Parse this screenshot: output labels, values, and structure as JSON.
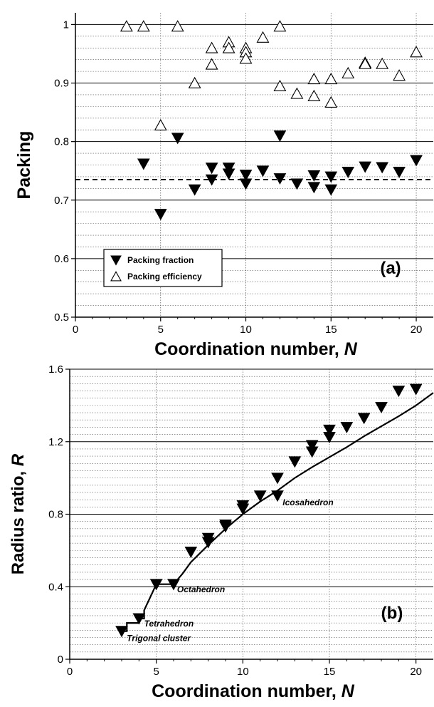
{
  "chart_data": [
    {
      "type": "scatter",
      "panel_label": "(a)",
      "xlabel": "Coordination number, ",
      "xlabel_var": "N",
      "ylabel": "Packing",
      "xlim": [
        0,
        21
      ],
      "ylim": [
        0.5,
        1.02
      ],
      "x_ticks": [
        0,
        5,
        10,
        15,
        20
      ],
      "y_ticks": [
        0.5,
        0.6,
        0.7,
        0.8,
        0.9,
        1
      ],
      "y_tick_labels": [
        "0.5",
        "0.6",
        "0.7",
        "0.8",
        "0.9",
        "1"
      ],
      "grid": true,
      "reference_line": {
        "y": 0.735,
        "style": "dashed"
      },
      "legend_position": "bottom-left",
      "series": [
        {
          "name": "Packing fraction",
          "marker": "filled-down-triangle",
          "x": [
            4,
            5,
            6,
            7,
            8,
            8,
            9,
            9,
            10,
            10,
            11,
            12,
            12,
            13,
            14,
            14,
            15,
            15,
            16,
            17,
            18,
            19,
            20
          ],
          "y": [
            0.762,
            0.676,
            0.806,
            0.718,
            0.755,
            0.735,
            0.755,
            0.745,
            0.743,
            0.728,
            0.75,
            0.81,
            0.737,
            0.728,
            0.742,
            0.722,
            0.74,
            0.718,
            0.748,
            0.757,
            0.756,
            0.748,
            0.768
          ]
        },
        {
          "name": "Packing efficiency",
          "marker": "hollow-up-triangle",
          "x": [
            3,
            4,
            5,
            6,
            7,
            8,
            8,
            9,
            9,
            10,
            10,
            10,
            11,
            12,
            12,
            13,
            14,
            14,
            15,
            15,
            16,
            17,
            17,
            18,
            19,
            20
          ],
          "y": [
            0.997,
            0.997,
            0.828,
            0.997,
            0.9,
            0.96,
            0.932,
            0.97,
            0.96,
            0.96,
            0.953,
            0.942,
            0.978,
            0.997,
            0.895,
            0.882,
            0.907,
            0.878,
            0.907,
            0.867,
            0.917,
            0.935,
            0.933,
            0.933,
            0.913,
            0.953
          ]
        }
      ]
    },
    {
      "type": "scatter",
      "panel_label": "(b)",
      "xlabel": "Coordination number, ",
      "xlabel_var": "N",
      "ylabel": "Radius ratio, ",
      "ylabel_var": "R",
      "xlim": [
        0,
        21
      ],
      "ylim": [
        0,
        1.6
      ],
      "x_ticks": [
        0,
        5,
        10,
        15,
        20
      ],
      "y_ticks": [
        0,
        0.4,
        0.8,
        1.2,
        1.6
      ],
      "y_tick_labels": [
        "0",
        "0.4",
        "0.8",
        "1.2",
        "1.6"
      ],
      "grid": true,
      "series": [
        {
          "marker": "filled-down-triangle",
          "x": [
            3,
            4,
            5,
            6,
            7,
            8,
            8,
            9,
            9,
            10,
            10,
            11,
            12,
            12,
            13,
            14,
            14,
            15,
            15,
            16,
            17,
            18,
            19,
            20
          ],
          "y": [
            0.155,
            0.225,
            0.414,
            0.414,
            0.592,
            0.645,
            0.668,
            0.732,
            0.742,
            0.83,
            0.848,
            0.902,
            0.902,
            1.0,
            1.09,
            1.145,
            1.18,
            1.225,
            1.265,
            1.28,
            1.33,
            1.39,
            1.48,
            1.49
          ]
        }
      ],
      "curve": {
        "x": [
          3,
          3.3,
          3.3,
          4,
          4,
          4.3,
          4.3,
          5,
          5.3,
          5.3,
          6,
          6.5,
          7,
          8,
          9,
          10,
          11,
          12,
          13,
          14,
          15,
          16,
          17,
          18,
          19,
          20,
          21
        ],
        "y": [
          0.155,
          0.155,
          0.2,
          0.2,
          0.225,
          0.225,
          0.27,
          0.414,
          0.414,
          0.414,
          0.414,
          0.47,
          0.535,
          0.63,
          0.72,
          0.8,
          0.87,
          0.93,
          1.0,
          1.06,
          1.115,
          1.17,
          1.23,
          1.285,
          1.34,
          1.4,
          1.47
        ]
      },
      "annotations": [
        {
          "text": "Icosahedron",
          "x": 12.3,
          "y": 0.85
        },
        {
          "text": "Octahedron",
          "x": 6.2,
          "y": 0.37
        },
        {
          "text": "Tetrahedron",
          "x": 4.3,
          "y": 0.18
        },
        {
          "text": "Trigonal cluster",
          "x": 3.3,
          "y": 0.1
        }
      ]
    }
  ]
}
